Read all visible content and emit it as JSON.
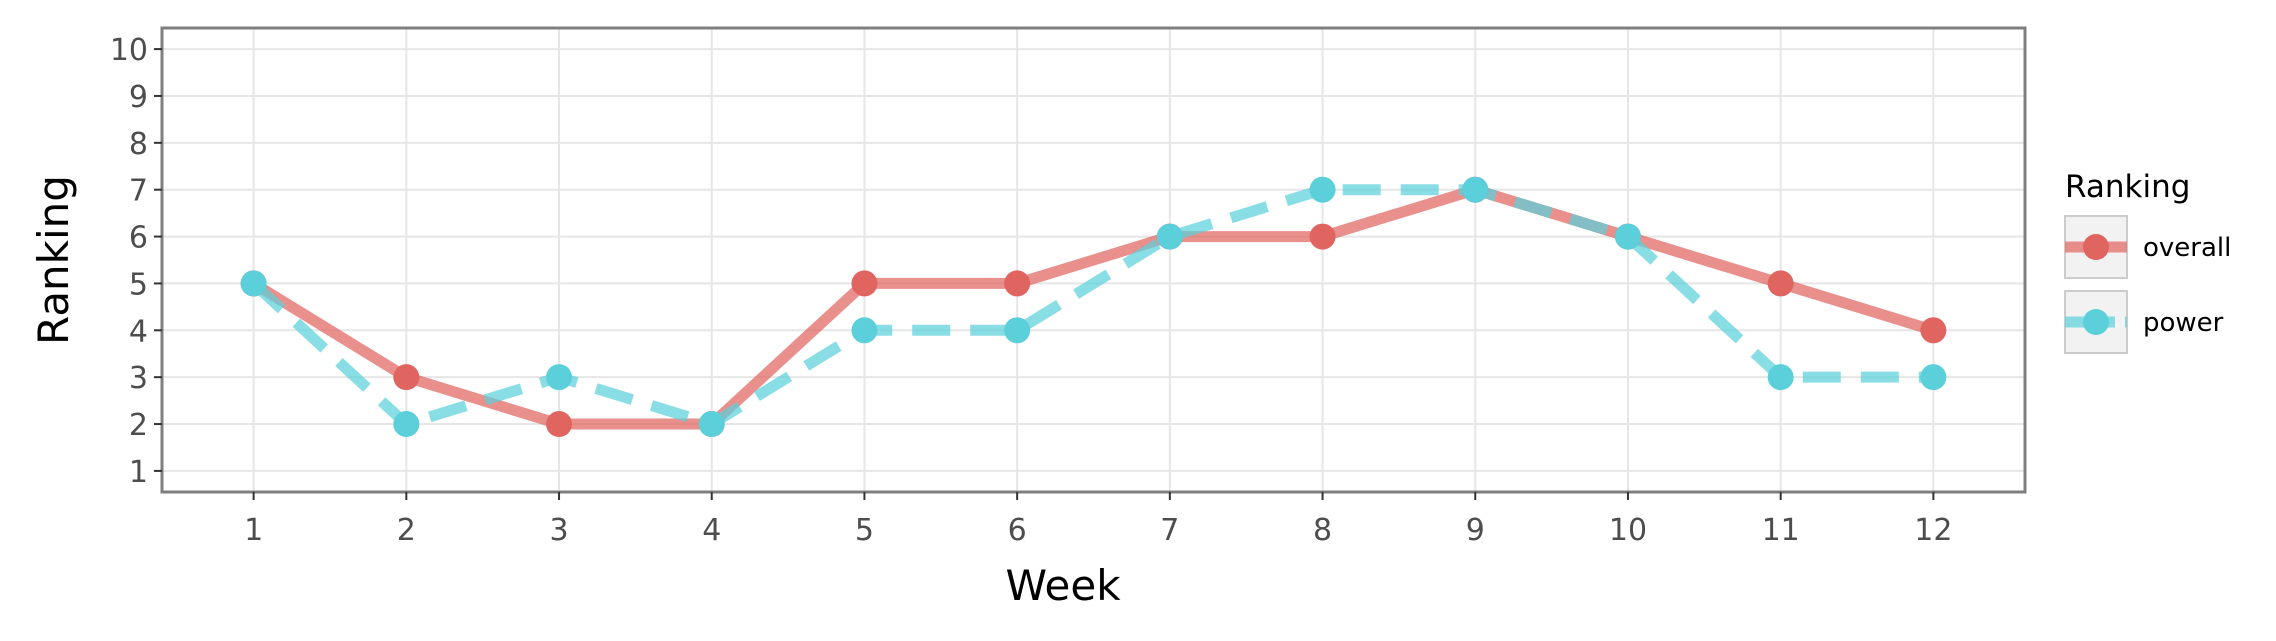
{
  "chart_data": {
    "type": "line",
    "xlabel": "Week",
    "ylabel": "Ranking",
    "x": [
      1,
      2,
      3,
      4,
      5,
      6,
      7,
      8,
      9,
      10,
      11,
      12
    ],
    "x_ticks": [
      "1",
      "2",
      "3",
      "4",
      "5",
      "6",
      "7",
      "8",
      "9",
      "10",
      "11",
      "12"
    ],
    "y_ticks": [
      "1",
      "2",
      "3",
      "4",
      "5",
      "6",
      "7",
      "8",
      "9",
      "10"
    ],
    "xlim": [
      0.4,
      12.6
    ],
    "ylim": [
      10.45,
      0.55
    ],
    "y_reversed": true,
    "grid": true,
    "legend": {
      "title": "Ranking",
      "placement": "right"
    },
    "series": [
      {
        "name": "overall",
        "values": [
          5,
          3,
          2,
          2,
          5,
          5,
          6,
          6,
          7,
          6,
          5,
          4
        ],
        "color": "#E06561",
        "line_style": "solid"
      },
      {
        "name": "power",
        "values": [
          5,
          2,
          3,
          2,
          4,
          4,
          6,
          7,
          7,
          6,
          3,
          3
        ],
        "color": "#5BD0DB",
        "line_style": "dashed"
      }
    ]
  }
}
